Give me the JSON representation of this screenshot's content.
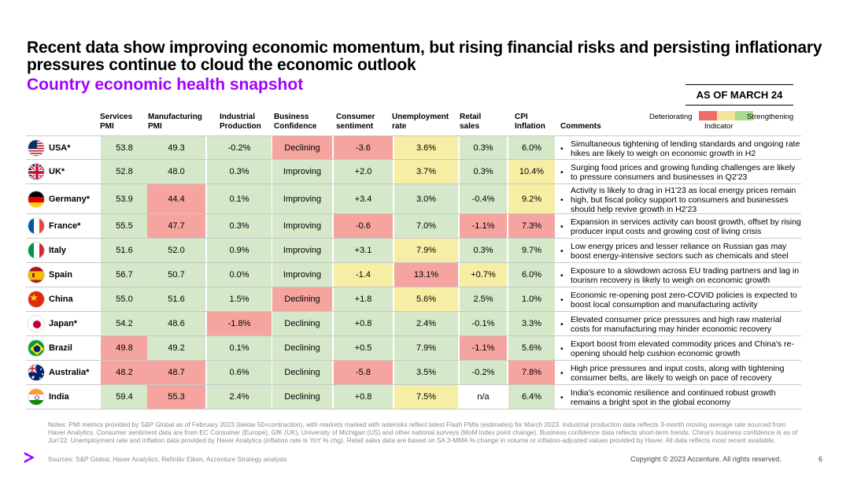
{
  "title": "Recent data show improving economic momentum, but rising financial risks and persisting inflationary pressures continue to cloud the economic outlook",
  "subtitle": "Country economic health snapshot",
  "as_of": "AS OF MARCH 24",
  "legend": {
    "left": "Deteriorating",
    "right": "Strengthening",
    "center": "Indicator",
    "colors": [
      "#f26b6b",
      "#f3e49b",
      "#a9d98c"
    ]
  },
  "colors": {
    "green": "#d5e8c9",
    "yellow": "#f7eea6",
    "red": "#f5a49f",
    "accent": "#a100ff"
  },
  "headers": {
    "services": "Services\nPMI",
    "manufacturing": "Manufacturing\nPMI",
    "industrial": "Industrial\nProduction",
    "business": "Business\nConfidence",
    "consumer": "Consumer\nsentiment",
    "unemployment": "Unemployment\nrate",
    "retail": "Retail\nsales",
    "cpi": "CPI\nInflation",
    "comments": "Comments"
  },
  "rows": [
    {
      "country": "USA*",
      "flag": "us-flag",
      "vals": [
        "53.8",
        "49.3",
        "-0.2%",
        "Declining",
        "-3.6",
        "3.6%",
        "0.3%",
        "6.0%"
      ],
      "tones": [
        "g",
        "g",
        "g",
        "r",
        "r",
        "y",
        "g",
        "g"
      ],
      "comment": "Simultaneous tightening of lending standards and ongoing rate hikes are likely to weigh on economic growth in H2"
    },
    {
      "country": "UK*",
      "flag": "uk-flag",
      "vals": [
        "52.8",
        "48.0",
        "0.3%",
        "Improving",
        "+2.0",
        "3.7%",
        "0.3%",
        "10.4%"
      ],
      "tones": [
        "g",
        "g",
        "g",
        "g",
        "g",
        "y",
        "g",
        "y"
      ],
      "comment": "Surging food prices and growing funding challenges are likely to pressure consumers and businesses in Q2'23"
    },
    {
      "country": "Germany*",
      "flag": "germany-flag",
      "vals": [
        "53.9",
        "44.4",
        "0.1%",
        "Improving",
        "+3.4",
        "3.0%",
        "-0.4%",
        "9.2%"
      ],
      "tones": [
        "g",
        "r",
        "g",
        "g",
        "g",
        "g",
        "g",
        "y"
      ],
      "comment": "Activity is likely to drag in H1'23 as local energy prices remain high, but fiscal policy support to consumers and businesses should help revive growth in H2'23"
    },
    {
      "country": "France*",
      "flag": "france-flag",
      "vals": [
        "55.5",
        "47.7",
        "0.3%",
        "Improving",
        "-0.6",
        "7.0%",
        "-1.1%",
        "7.3%"
      ],
      "tones": [
        "g",
        "r",
        "g",
        "g",
        "r",
        "g",
        "r",
        "r"
      ],
      "comment": "Expansion in services activity can boost growth, offset by rising producer input costs and growing cost of living crisis"
    },
    {
      "country": "Italy",
      "flag": "italy-flag",
      "vals": [
        "51.6",
        "52.0",
        "0.9%",
        "Improving",
        "+3.1",
        "7.9%",
        "0.3%",
        "9.7%"
      ],
      "tones": [
        "g",
        "g",
        "g",
        "g",
        "g",
        "y",
        "g",
        "g"
      ],
      "comment": "Low energy prices and lesser reliance on Russian gas may boost energy-intensive sectors such as chemicals and steel"
    },
    {
      "country": "Spain",
      "flag": "spain-flag",
      "vals": [
        "56.7",
        "50.7",
        "0.0%",
        "Improving",
        "-1.4",
        "13.1%",
        "+0.7%",
        "6.0%"
      ],
      "tones": [
        "g",
        "g",
        "g",
        "g",
        "y",
        "r",
        "y",
        "g"
      ],
      "comment": "Exposure to a slowdown across EU trading partners and lag in tourism recovery is likely to weigh on economic growth"
    },
    {
      "country": "China",
      "flag": "china-flag",
      "vals": [
        "55.0",
        "51.6",
        "1.5%",
        "Declining",
        "+1.8",
        "5.6%",
        "2.5%",
        "1.0%"
      ],
      "tones": [
        "g",
        "g",
        "g",
        "r",
        "g",
        "y",
        "g",
        "g"
      ],
      "comment": "Economic re-opening post zero-COVID policies is expected to boost local consumption and manufacturing activity"
    },
    {
      "country": "Japan*",
      "flag": "japan-flag",
      "vals": [
        "54.2",
        "48.6",
        "-1.8%",
        "Declining",
        "+0.8",
        "2.4%",
        "-0.1%",
        "3.3%"
      ],
      "tones": [
        "g",
        "g",
        "r",
        "g",
        "g",
        "g",
        "g",
        "g"
      ],
      "comment": "Elevated consumer price pressures and high raw material costs for manufacturing may hinder economic recovery"
    },
    {
      "country": "Brazil",
      "flag": "brazil-flag",
      "vals": [
        "49.8",
        "49.2",
        "0.1%",
        "Declining",
        "+0.5",
        "7.9%",
        "-1.1%",
        "5.6%"
      ],
      "tones": [
        "r",
        "g",
        "g",
        "g",
        "g",
        "g",
        "r",
        "g"
      ],
      "comment": "Export boost from elevated commodity prices and China's re-opening should help cushion economic growth"
    },
    {
      "country": "Australia*",
      "flag": "australia-flag",
      "vals": [
        "48.2",
        "48.7",
        "0.6%",
        "Declining",
        "-5.8",
        "3.5%",
        "-0.2%",
        "7.8%"
      ],
      "tones": [
        "r",
        "r",
        "g",
        "g",
        "r",
        "g",
        "g",
        "r"
      ],
      "comment": "High price pressures and input costs, along with tightening consumer belts, are likely to weigh on pace of recovery"
    },
    {
      "country": "India",
      "flag": "india-flag",
      "vals": [
        "59.4",
        "55.3",
        "2.4%",
        "Declining",
        "+0.8",
        "7.5%",
        "n/a",
        "6.4%"
      ],
      "tones": [
        "g",
        "r",
        "g",
        "g",
        "g",
        "y",
        "w",
        "g"
      ],
      "comment": "India's economic resilience and continued robust growth remains a bright spot in the global economy"
    }
  ],
  "notes": "Notes: PMI metrics provided by S&P Global as of February 2023 (below 50=contraction), with markets marked with asterisks reflect latest Flash PMIs (estimates) for March 2023. Industrial production data reflects 3-month moving average rate sourced from Haver Analytics. Consumer sentiment data are from EC Consumer (Europe), GfK (UK), University of Michigan (US) and other national surveys (MoM index point change). Business confidence data reflects short-term trends. China's business confidence is as of Jun'22. Unemployment rate and inflation data provided by Haver Analytics (inflation rate is YoY % chg). Retail sales data are based on SA 3-MMA % change in volume or inflation-adjusted values provided by Haver. All data reflects most recent available.",
  "sources": "Sources: S&P Global, Haver Analytics, Refinitiv Eikon, Accenture Strategy analysis",
  "copyright": "Copyright © 2023 Accenture. All rights reserved.",
  "page": "6"
}
